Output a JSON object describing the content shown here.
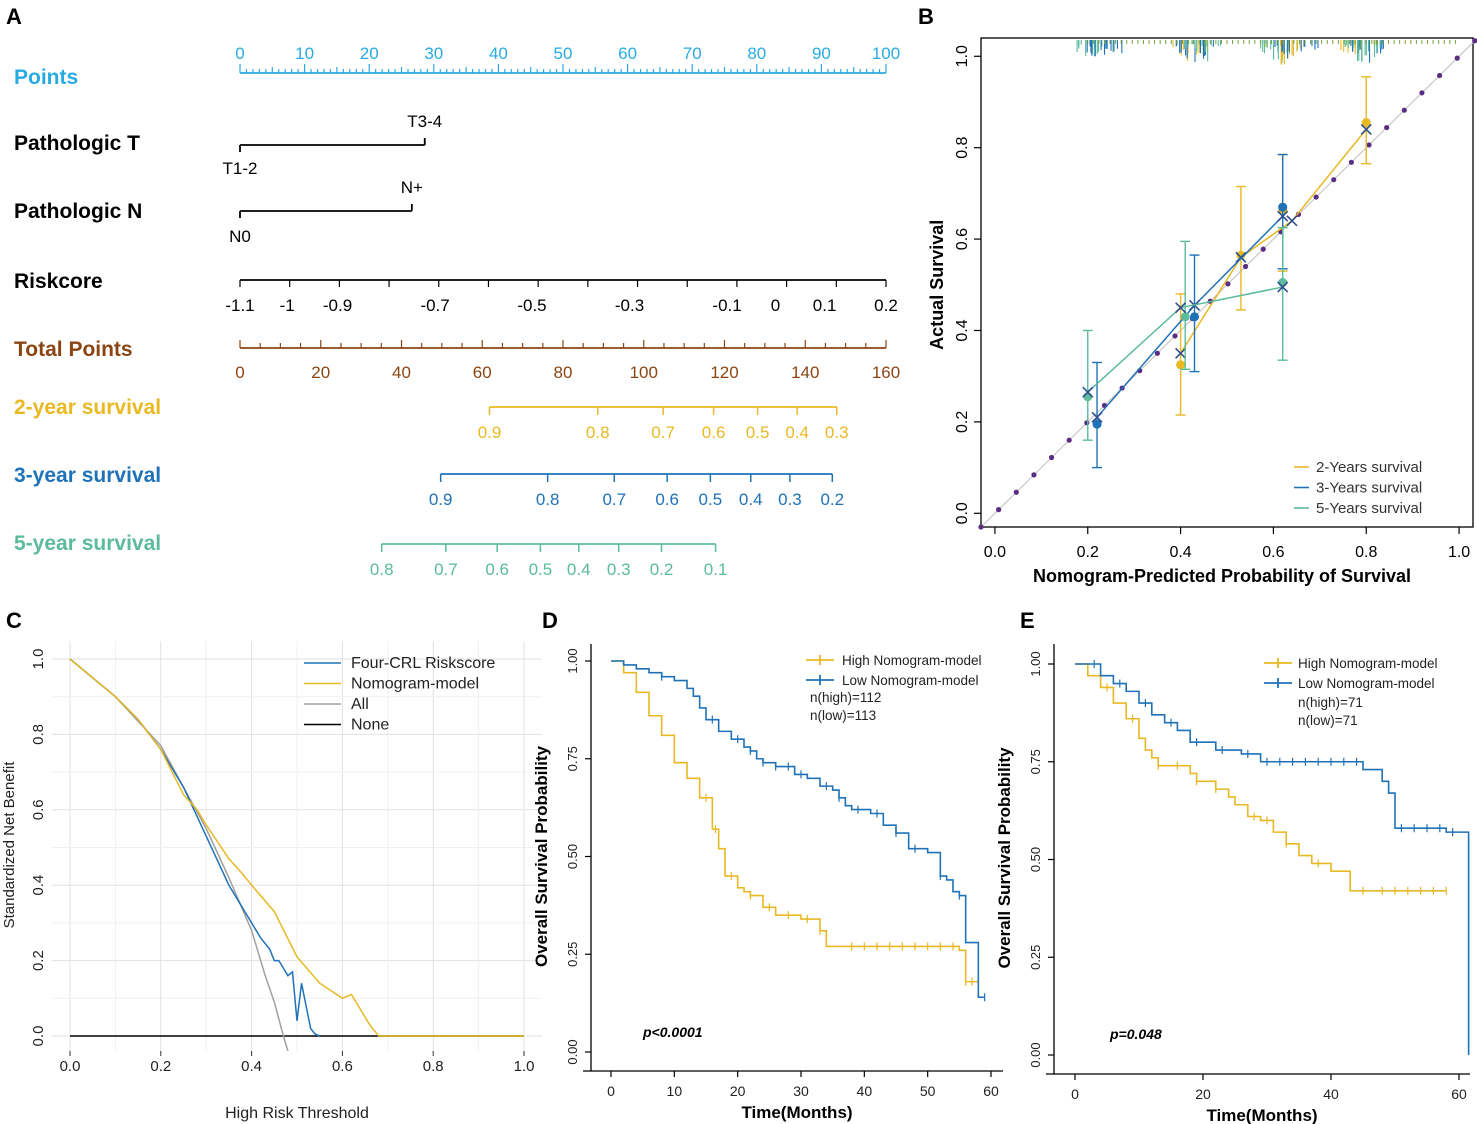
{
  "panel_labels": [
    "A",
    "B",
    "C",
    "D",
    "E"
  ],
  "colors": {
    "points": "#29ABE2",
    "total_points": "#8B4513",
    "y2": "#E8B923",
    "y3": "#1F72B8",
    "y5": "#5BBB9B",
    "black": "#000000",
    "diag": "#5B2C83",
    "grid": "#E5E5E5",
    "all_line": "#A0A0A0"
  },
  "chart_data": [
    {
      "panel": "A",
      "type": "nomogram",
      "rows": [
        {
          "name": "Points",
          "scale_type": "points",
          "ticks": [
            "0",
            "10",
            "20",
            "30",
            "40",
            "50",
            "60",
            "70",
            "80",
            "90",
            "100"
          ],
          "range_points": [
            0,
            100
          ],
          "tick_points": [
            0,
            10,
            20,
            30,
            40,
            50,
            60,
            70,
            80,
            90,
            100
          ]
        },
        {
          "name": "Pathologic T",
          "scale_type": "categorical",
          "levels": [
            {
              "label": "T1-2",
              "points": 0
            },
            {
              "label": "T3-4",
              "points": 28.6
            }
          ]
        },
        {
          "name": "Pathologic N",
          "scale_type": "categorical",
          "levels": [
            {
              "label": "N0",
              "points": 0
            },
            {
              "label": "N+",
              "points": 26.6
            }
          ]
        },
        {
          "name": "Riskcore",
          "scale_type": "continuous",
          "ticks": [
            "-1.1",
            "-1",
            "-0.9",
            "-0.7",
            "-0.5",
            "-0.3",
            "-0.1",
            "0",
            "0.1",
            "0.2"
          ],
          "tick_points": [
            0,
            7.3,
            15.1,
            30.2,
            45.2,
            60.3,
            75.4,
            82.9,
            90.5,
            100
          ]
        },
        {
          "name": "Total Points",
          "scale_type": "total",
          "ticks": [
            "0",
            "20",
            "40",
            "60",
            "80",
            "100",
            "120",
            "140",
            "160"
          ],
          "range": [
            0,
            160
          ]
        },
        {
          "name": "2-year survival",
          "ticks": [
            "0.9",
            "0.8",
            "0.7",
            "0.6",
            "0.5",
            "0.4",
            "0.3"
          ],
          "tick_total_points": [
            61.8,
            88.6,
            104.8,
            117.3,
            128.2,
            138.0,
            147.8
          ]
        },
        {
          "name": "3-year survival",
          "ticks": [
            "0.9",
            "0.8",
            "0.7",
            "0.6",
            "0.5",
            "0.4",
            "0.3",
            "0.2"
          ],
          "tick_total_points": [
            49.7,
            76.2,
            92.7,
            105.8,
            116.5,
            126.5,
            136.2,
            146.7
          ]
        },
        {
          "name": "5-year survival",
          "ticks": [
            "0.8",
            "0.7",
            "0.6",
            "0.5",
            "0.4",
            "0.3",
            "0.2",
            "0.1"
          ],
          "tick_total_points": [
            35.1,
            51.0,
            63.7,
            74.4,
            83.9,
            93.8,
            104.4,
            117.8
          ]
        }
      ]
    },
    {
      "panel": "B",
      "type": "calibration",
      "xlabel": "Nomogram-Predicted Probability of Survival",
      "ylabel": "Actual  Survival",
      "xlim": [
        -0.03,
        1.03
      ],
      "ylim": [
        -0.03,
        1.04
      ],
      "xticks": [
        "0.0",
        "0.2",
        "0.4",
        "0.6",
        "0.8",
        "1.0"
      ],
      "yticks": [
        "0.0",
        "0.2",
        "0.4",
        "0.6",
        "0.8",
        "1.0"
      ],
      "legend_position": "bottom-right",
      "series": [
        {
          "name": "2-Years survival",
          "color_key": "y2",
          "points": [
            {
              "x": 0.4,
              "y": 0.325,
              "lo": 0.215,
              "hi": 0.48,
              "x_cross": 0.4,
              "y_cross": 0.35
            },
            {
              "x": 0.53,
              "y": 0.565,
              "lo": 0.445,
              "hi": 0.715,
              "x_cross": 0.53,
              "y_cross": 0.56
            },
            {
              "x": 0.62,
              "y": 0.665,
              "lo": 0.53,
              "hi": 0.785,
              "x_cross": 0.64,
              "y_cross": 0.64
            },
            {
              "x": 0.8,
              "y": 0.855,
              "lo": 0.765,
              "hi": 0.955,
              "x_cross": 0.8,
              "y_cross": 0.84
            }
          ]
        },
        {
          "name": "3-Years survival",
          "color_key": "y3",
          "points": [
            {
              "x": 0.22,
              "y": 0.195,
              "lo": 0.1,
              "hi": 0.33,
              "x_cross": 0.22,
              "y_cross": 0.21
            },
            {
              "x": 0.43,
              "y": 0.43,
              "lo": 0.31,
              "hi": 0.565,
              "x_cross": 0.43,
              "y_cross": 0.455
            },
            {
              "x": 0.62,
              "y": 0.67,
              "lo": 0.535,
              "hi": 0.785,
              "x_cross": 0.62,
              "y_cross": 0.65
            }
          ]
        },
        {
          "name": "5-Years survival",
          "color_key": "y5",
          "points": [
            {
              "x": 0.2,
              "y": 0.255,
              "lo": 0.16,
              "hi": 0.4,
              "x_cross": 0.2,
              "y_cross": 0.265
            },
            {
              "x": 0.41,
              "y": 0.43,
              "lo": 0.315,
              "hi": 0.595,
              "x_cross": 0.4,
              "y_cross": 0.45
            },
            {
              "x": 0.62,
              "y": 0.505,
              "lo": 0.335,
              "hi": 0.625,
              "x_cross": 0.62,
              "y_cross": 0.495
            }
          ]
        }
      ]
    },
    {
      "panel": "C",
      "type": "line",
      "title": "",
      "xlabel": "High Risk Threshold",
      "ylabel": "Standardized Net Benefit",
      "xlim": [
        0,
        1
      ],
      "ylim": [
        0,
        1
      ],
      "xticks": [
        "0.0",
        "0.2",
        "0.4",
        "0.6",
        "0.8",
        "1.0"
      ],
      "yticks": [
        "0.0",
        "0.2",
        "0.4",
        "0.6",
        "0.8",
        "1.0"
      ],
      "legend_position": "top-right",
      "series": [
        {
          "name": "Four-CRL Riskscore",
          "color_key": "y3",
          "x": [
            0,
            0.05,
            0.1,
            0.15,
            0.2,
            0.25,
            0.3,
            0.35,
            0.4,
            0.42,
            0.44,
            0.45,
            0.46,
            0.47,
            0.48,
            0.49,
            0.5,
            0.51,
            0.52,
            0.53,
            0.54,
            0.55
          ],
          "y": [
            1,
            0.95,
            0.9,
            0.84,
            0.76,
            0.66,
            0.53,
            0.4,
            0.3,
            0.26,
            0.23,
            0.2,
            0.2,
            0.18,
            0.16,
            0.17,
            0.04,
            0.14,
            0.08,
            0.02,
            0.005,
            0
          ]
        },
        {
          "name": "Nomogram-model",
          "color_key": "y2",
          "x": [
            0,
            0.05,
            0.1,
            0.15,
            0.2,
            0.25,
            0.28,
            0.3,
            0.35,
            0.38,
            0.4,
            0.45,
            0.5,
            0.55,
            0.6,
            0.62,
            0.64,
            0.66,
            0.68,
            0.7,
            0.8,
            1.0
          ],
          "y": [
            1,
            0.95,
            0.9,
            0.84,
            0.76,
            0.64,
            0.6,
            0.56,
            0.47,
            0.43,
            0.4,
            0.33,
            0.21,
            0.14,
            0.1,
            0.11,
            0.07,
            0.03,
            0.0,
            0,
            0,
            0
          ]
        },
        {
          "name": "All",
          "color_key": "all_line",
          "x": [
            0,
            0.1,
            0.2,
            0.3,
            0.35,
            0.4,
            0.43,
            0.45,
            0.47,
            0.49
          ],
          "y": [
            1,
            0.9,
            0.77,
            0.55,
            0.42,
            0.28,
            0.16,
            0.09,
            0.0,
            -0.08
          ]
        },
        {
          "name": "None",
          "color_key": "black",
          "x": [
            0,
            1
          ],
          "y": [
            0,
            0
          ]
        }
      ]
    },
    {
      "panel": "D",
      "type": "line",
      "title": "",
      "xlabel": "Time(Months)",
      "ylabel": "Overall Survival Probability",
      "xlim": [
        0,
        60
      ],
      "ylim": [
        0,
        1
      ],
      "xticks": [
        "0",
        "10",
        "20",
        "30",
        "40",
        "50",
        "60"
      ],
      "yticks": [
        "0.00",
        "0.25",
        "0.50",
        "0.75",
        "1.00"
      ],
      "annotation": "p<0.0001",
      "legend_position": "top-right",
      "n_labels": [
        "n(high)=112",
        "n(low)=113"
      ],
      "series": [
        {
          "name": "High Nomogram-model",
          "color_key": "y2",
          "x": [
            0,
            2,
            4,
            6,
            8,
            10,
            12,
            14,
            16,
            17,
            18,
            20,
            21,
            22,
            24,
            26,
            30,
            33,
            34,
            35,
            55,
            56,
            58
          ],
          "y": [
            1,
            0.97,
            0.92,
            0.86,
            0.81,
            0.74,
            0.7,
            0.65,
            0.57,
            0.52,
            0.45,
            0.42,
            0.41,
            0.4,
            0.37,
            0.35,
            0.34,
            0.31,
            0.27,
            0.27,
            0.26,
            0.18,
            0.18
          ],
          "censor_x": [
            15,
            16.5,
            19,
            22,
            25,
            28,
            31,
            33,
            38,
            40,
            42,
            44,
            46,
            48,
            50,
            52,
            54,
            56,
            57
          ]
        },
        {
          "name": "Low Nomogram-model",
          "color_key": "y3",
          "x": [
            0,
            2,
            4,
            6,
            8,
            10,
            12,
            13,
            14,
            15,
            17,
            19,
            21,
            22,
            23,
            24,
            26,
            29,
            31,
            33,
            35,
            36,
            37,
            38,
            41,
            43,
            45,
            47,
            50,
            52,
            53,
            54,
            55,
            56,
            58,
            59
          ],
          "y": [
            1,
            0.99,
            0.98,
            0.97,
            0.96,
            0.95,
            0.93,
            0.91,
            0.88,
            0.85,
            0.82,
            0.8,
            0.78,
            0.77,
            0.75,
            0.74,
            0.73,
            0.71,
            0.7,
            0.68,
            0.67,
            0.65,
            0.63,
            0.62,
            0.61,
            0.58,
            0.56,
            0.52,
            0.51,
            0.45,
            0.44,
            0.41,
            0.4,
            0.28,
            0.14,
            0.14
          ],
          "censor_x": [
            8,
            16,
            20,
            22,
            24,
            26,
            28,
            30,
            34,
            36,
            39,
            42,
            45,
            48,
            52,
            55,
            59
          ]
        }
      ]
    },
    {
      "panel": "E",
      "type": "line",
      "title": "",
      "xlabel": "Time(Months)",
      "ylabel": "Overall Survival Probability",
      "xlim": [
        0,
        60
      ],
      "ylim": [
        0,
        1
      ],
      "xticks": [
        "0",
        "20",
        "40",
        "60"
      ],
      "yticks": [
        "0.00",
        "0.25",
        "0.50",
        "0.75",
        "1.00"
      ],
      "annotation": "p=0.048",
      "legend_position": "top-right",
      "n_labels": [
        "n(high)=71",
        "n(low)=71"
      ],
      "series": [
        {
          "name": "High Nomogram-model",
          "color_key": "y2",
          "x": [
            0,
            2,
            4,
            6,
            8,
            10,
            11,
            12,
            13,
            14,
            18,
            19,
            20,
            22,
            24,
            25,
            27,
            29,
            31,
            33,
            35,
            37,
            40,
            43,
            58
          ],
          "y": [
            1,
            0.97,
            0.94,
            0.9,
            0.86,
            0.81,
            0.78,
            0.76,
            0.74,
            0.74,
            0.72,
            0.7,
            0.7,
            0.68,
            0.66,
            0.64,
            0.61,
            0.6,
            0.57,
            0.54,
            0.51,
            0.49,
            0.47,
            0.42,
            0.42
          ],
          "censor_x": [
            5,
            9,
            13,
            16,
            19,
            22,
            28,
            30,
            33,
            38,
            45,
            48,
            50,
            52,
            54,
            56,
            58
          ]
        },
        {
          "name": "Low Nomogram-model",
          "color_key": "y3",
          "x": [
            0,
            4,
            6,
            8,
            10,
            12,
            14,
            16,
            18,
            22,
            26,
            29,
            36,
            44,
            45,
            46,
            48,
            49,
            50,
            58,
            60,
            61,
            61.5
          ],
          "y": [
            1,
            0.97,
            0.95,
            0.93,
            0.9,
            0.87,
            0.85,
            0.83,
            0.8,
            0.78,
            0.77,
            0.75,
            0.75,
            0.75,
            0.73,
            0.73,
            0.7,
            0.67,
            0.58,
            0.57,
            0.57,
            0.57,
            0.0
          ],
          "censor_x": [
            3,
            7,
            11,
            15,
            19,
            23,
            27,
            30,
            32,
            34,
            36,
            38,
            40,
            42,
            44,
            51,
            53,
            55,
            57,
            59
          ]
        }
      ]
    }
  ]
}
